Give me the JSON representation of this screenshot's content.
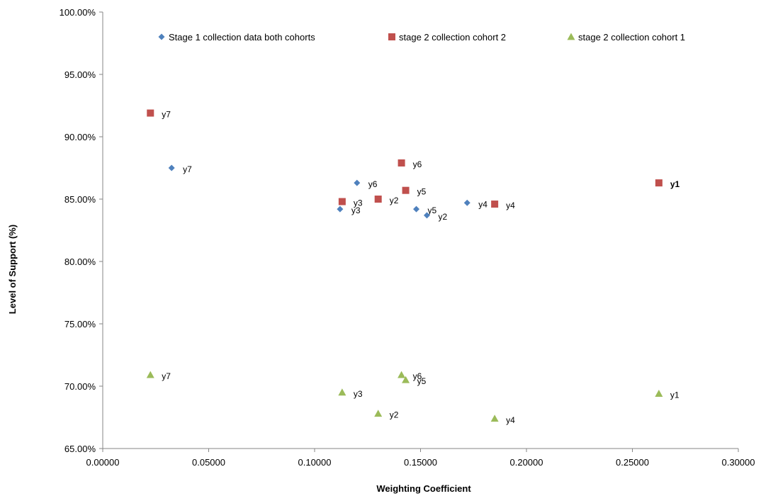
{
  "chart_data": {
    "type": "scatter",
    "title": "",
    "xlabel": "Weighting Coefficient",
    "ylabel": "Level of Support (%)",
    "xlim": [
      0,
      0.3
    ],
    "ylim": [
      65,
      100
    ],
    "x_ticks": [
      "0.00000",
      "0.05000",
      "0.10000",
      "0.15000",
      "0.20000",
      "0.25000",
      "0.30000"
    ],
    "y_ticks": [
      "65.00%",
      "70.00%",
      "75.00%",
      "80.00%",
      "85.00%",
      "90.00%",
      "95.00%",
      "100.00%"
    ],
    "grid": false,
    "legend_position": "top",
    "series": [
      {
        "name": "Stage 1 collection data both cohorts",
        "marker": "diamond",
        "color": "#4f81bd",
        "points": [
          {
            "x": 0.0325,
            "y": 87.5,
            "label": "y7"
          },
          {
            "x": 0.12,
            "y": 86.3,
            "label": "y6"
          },
          {
            "x": 0.112,
            "y": 84.2,
            "label": "y3"
          },
          {
            "x": 0.148,
            "y": 84.2,
            "label": "y5"
          },
          {
            "x": 0.153,
            "y": 83.7,
            "label": "y2"
          },
          {
            "x": 0.172,
            "y": 84.7,
            "label": "y4"
          }
        ]
      },
      {
        "name": "stage 2 collection cohort 2",
        "marker": "square",
        "color": "#c0504d",
        "points": [
          {
            "x": 0.0225,
            "y": 91.9,
            "label": "y7"
          },
          {
            "x": 0.141,
            "y": 87.9,
            "label": "y6"
          },
          {
            "x": 0.113,
            "y": 84.8,
            "label": "y3"
          },
          {
            "x": 0.13,
            "y": 85.0,
            "label": "y2"
          },
          {
            "x": 0.143,
            "y": 85.7,
            "label": "y5"
          },
          {
            "x": 0.185,
            "y": 84.6,
            "label": "y4"
          },
          {
            "x": 0.2625,
            "y": 86.3,
            "label": "y1",
            "bold": true
          }
        ]
      },
      {
        "name": "stage 2 collection cohort 1",
        "marker": "triangle",
        "color": "#9bbb59",
        "points": [
          {
            "x": 0.0225,
            "y": 70.9,
            "label": "y7"
          },
          {
            "x": 0.113,
            "y": 69.5,
            "label": "y3"
          },
          {
            "x": 0.13,
            "y": 67.8,
            "label": "y2"
          },
          {
            "x": 0.141,
            "y": 70.9,
            "label": "y6"
          },
          {
            "x": 0.143,
            "y": 70.5,
            "label": "y5"
          },
          {
            "x": 0.185,
            "y": 67.4,
            "label": "y4"
          },
          {
            "x": 0.2625,
            "y": 69.4,
            "label": "y1"
          }
        ]
      }
    ]
  }
}
